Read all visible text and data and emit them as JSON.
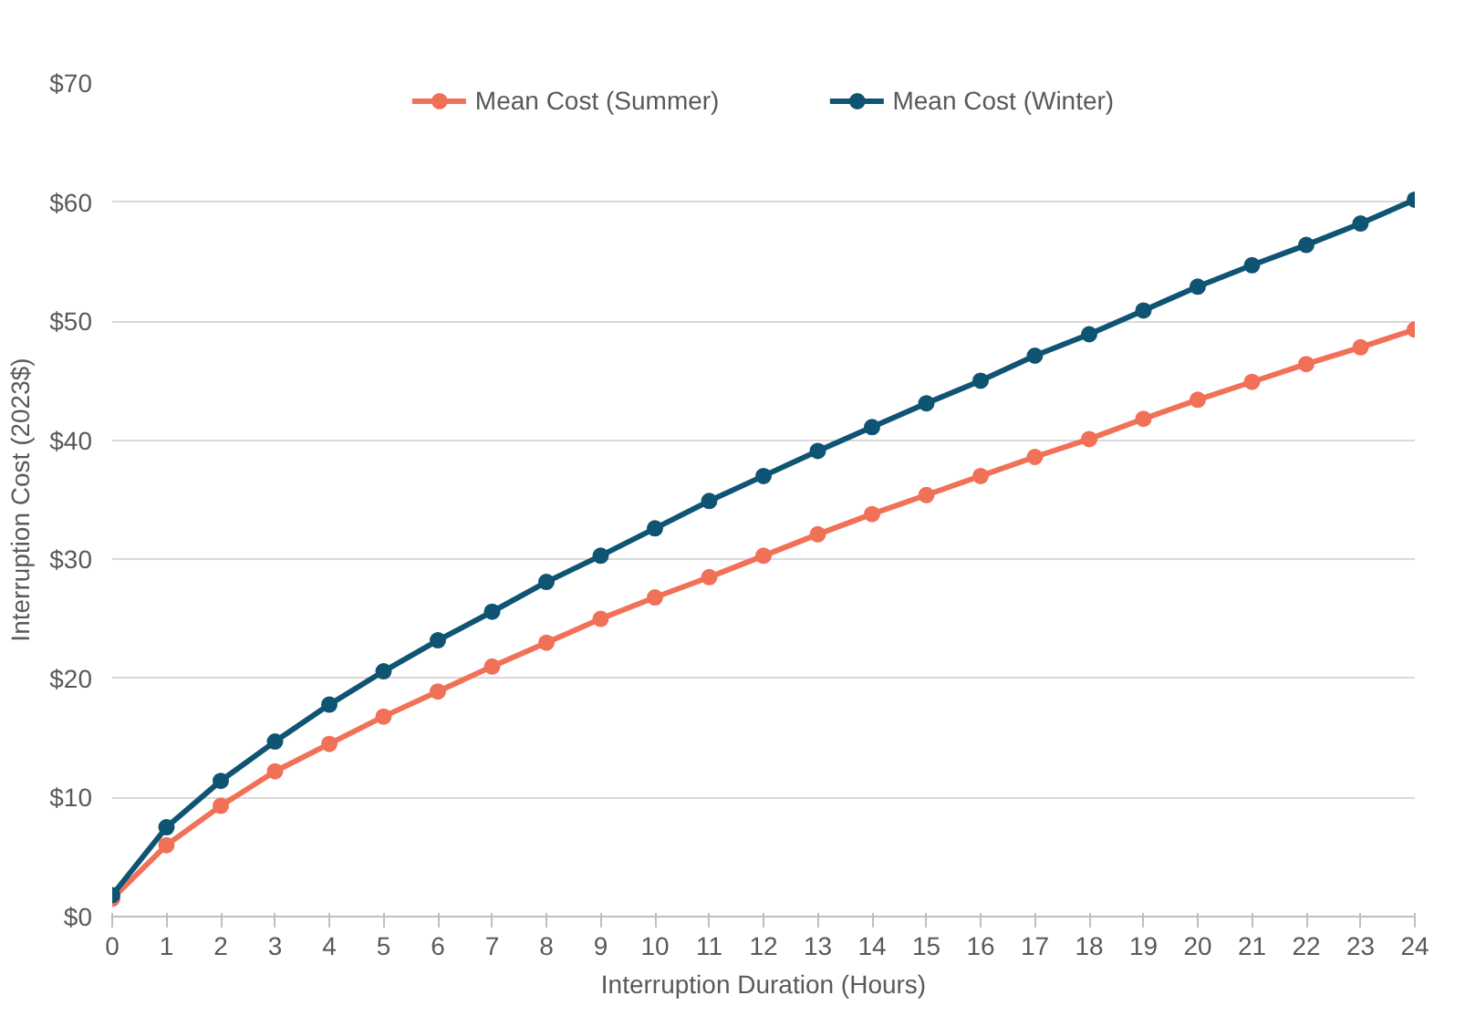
{
  "chart_data": {
    "type": "line",
    "xlabel": "Interruption Duration (Hours)",
    "ylabel": "Interruption Cost (2023$)",
    "x": [
      0,
      1,
      2,
      3,
      4,
      5,
      6,
      7,
      8,
      9,
      10,
      11,
      12,
      13,
      14,
      15,
      16,
      17,
      18,
      19,
      20,
      21,
      22,
      23,
      24
    ],
    "series": [
      {
        "name": "Mean Cost (Summer)",
        "color": "#f07157",
        "values": [
          1.5,
          6.0,
          9.3,
          12.2,
          14.5,
          16.8,
          18.9,
          21.0,
          23.0,
          25.0,
          26.8,
          28.5,
          30.3,
          32.1,
          33.8,
          35.4,
          37.0,
          38.6,
          40.1,
          41.8,
          43.4,
          44.9,
          46.4,
          47.8,
          49.3
        ]
      },
      {
        "name": "Mean Cost (Winter)",
        "color": "#0f5473",
        "values": [
          1.8,
          7.5,
          11.4,
          14.7,
          17.8,
          20.6,
          23.2,
          25.6,
          28.1,
          30.3,
          32.6,
          34.9,
          37.0,
          39.1,
          41.1,
          43.1,
          45.0,
          47.1,
          48.9,
          50.9,
          52.9,
          54.7,
          56.4,
          58.2,
          60.2
        ]
      }
    ],
    "xlim": [
      0,
      24
    ],
    "xticks": [
      0,
      1,
      2,
      3,
      4,
      5,
      6,
      7,
      8,
      9,
      10,
      11,
      12,
      13,
      14,
      15,
      16,
      17,
      18,
      19,
      20,
      21,
      22,
      23,
      24
    ],
    "ylim": [
      0,
      70
    ],
    "yticks": [
      {
        "value": 0,
        "label": "$0"
      },
      {
        "value": 10,
        "label": "$10"
      },
      {
        "value": 20,
        "label": "$20"
      },
      {
        "value": 30,
        "label": "$30"
      },
      {
        "value": 40,
        "label": "$40"
      },
      {
        "value": 50,
        "label": "$50"
      },
      {
        "value": 60,
        "label": "$60"
      },
      {
        "value": 70,
        "label": "$70"
      }
    ],
    "grid": "y",
    "legend": "top",
    "marker": "circle",
    "line_style": "solid"
  }
}
